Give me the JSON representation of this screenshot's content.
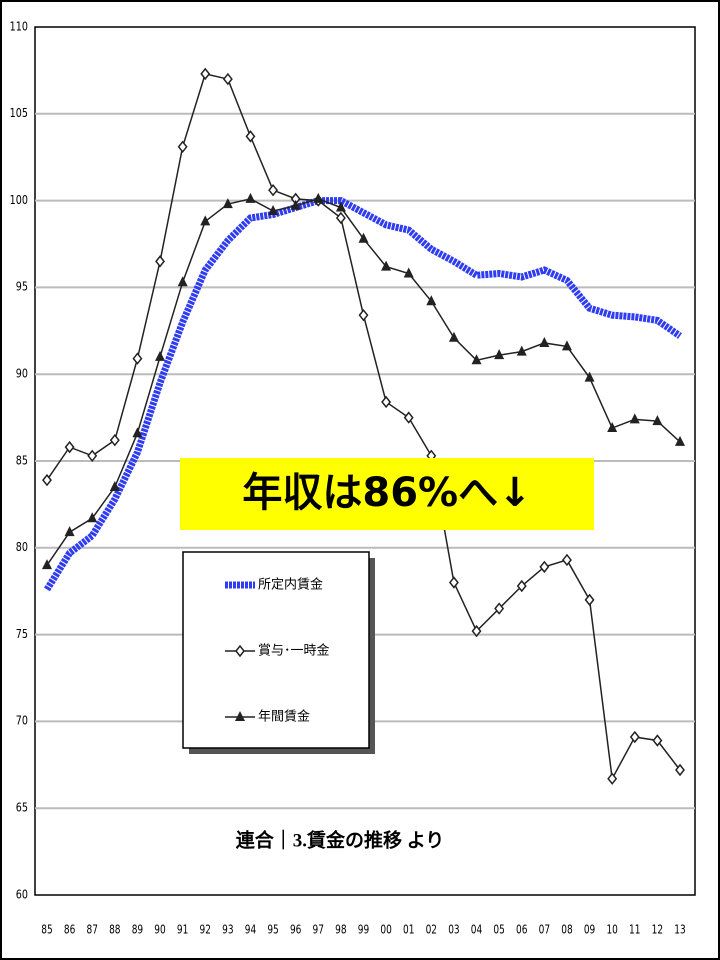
{
  "chart_data": {
    "type": "line",
    "categories": [
      "85",
      "86",
      "87",
      "88",
      "89",
      "90",
      "91",
      "92",
      "93",
      "94",
      "95",
      "96",
      "97",
      "98",
      "99",
      "00",
      "01",
      "02",
      "03",
      "04",
      "05",
      "06",
      "07",
      "08",
      "09",
      "10",
      "11",
      "12",
      "13"
    ],
    "series": [
      {
        "name": "所定内賃金",
        "color": "#2f3cf0",
        "marker": "none",
        "values": [
          77.6,
          79.7,
          80.7,
          82.8,
          85.5,
          89.5,
          93,
          96,
          97.7,
          99,
          99.2,
          99.6,
          100,
          100,
          99.3,
          98.6,
          98.3,
          97.2,
          96.5,
          95.7,
          95.8,
          95.6,
          96,
          95.4,
          93.8,
          93.4,
          93.3,
          93.1,
          92.2
        ]
      },
      {
        "name": "賞与･一時金",
        "color": "#222222",
        "marker": "diamond",
        "values": [
          83.9,
          85.8,
          85.3,
          86.2,
          90.9,
          96.5,
          103.1,
          107.3,
          107,
          103.7,
          100.6,
          100.1,
          100,
          99,
          93.4,
          88.4,
          87.5,
          85.3,
          78,
          75.2,
          76.5,
          77.8,
          78.9,
          79.3,
          77,
          66.7,
          69.1,
          68.9,
          67.2
        ]
      },
      {
        "name": "年間賃金",
        "color": "#222222",
        "marker": "triangle",
        "values": [
          79,
          80.9,
          81.7,
          83.5,
          86.6,
          91,
          95.3,
          98.8,
          99.8,
          100.1,
          99.4,
          99.7,
          100.1,
          99.6,
          97.8,
          96.2,
          95.8,
          94.2,
          92.1,
          90.8,
          91.1,
          91.3,
          91.8,
          91.6,
          89.8,
          86.9,
          87.4,
          87.3,
          86.1
        ]
      }
    ],
    "ylim": [
      60,
      110
    ],
    "yticks": [
      60,
      65,
      70,
      75,
      80,
      85,
      90,
      95,
      100,
      105,
      110
    ],
    "grid": true,
    "annotations": [
      "年収は86%へ↓",
      "連合｜3.賃金の推移 より"
    ]
  }
}
